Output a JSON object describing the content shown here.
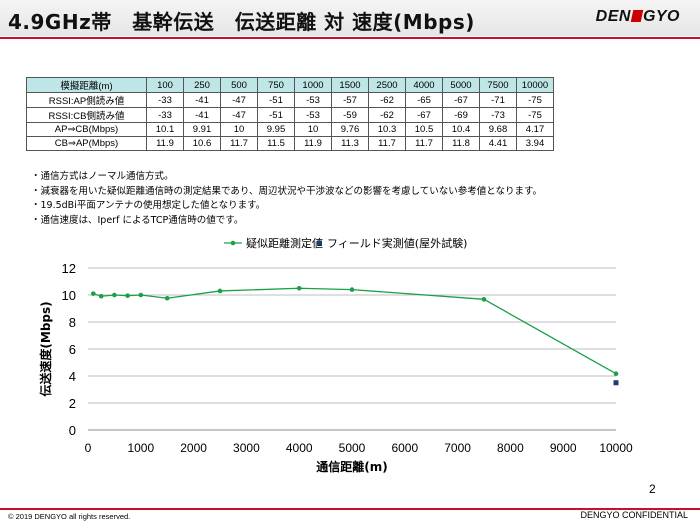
{
  "header": {
    "title": "4.9GHz帯　基幹伝送　伝送距離 対 速度(Mbps)",
    "logo_left": "DEN",
    "logo_right": "GYO"
  },
  "table": {
    "header_label": "模擬距離(m)",
    "distances": [
      "100",
      "250",
      "500",
      "750",
      "1000",
      "1500",
      "2500",
      "4000",
      "5000",
      "7500",
      "10000"
    ],
    "rows": [
      {
        "label": "RSSI:AP側読み値",
        "values": [
          "-33",
          "-41",
          "-47",
          "-51",
          "-53",
          "-57",
          "-62",
          "-65",
          "-67",
          "-71",
          "-75"
        ]
      },
      {
        "label": "RSSI:CB側読み値",
        "values": [
          "-33",
          "-41",
          "-47",
          "-51",
          "-53",
          "-59",
          "-62",
          "-67",
          "-69",
          "-73",
          "-75"
        ]
      },
      {
        "label": "AP⇒CB(Mbps)",
        "values": [
          "10.1",
          "9.91",
          "10",
          "9.95",
          "10",
          "9.76",
          "10.3",
          "10.5",
          "10.4",
          "9.68",
          "4.17"
        ]
      },
      {
        "label": "CB⇒AP(Mbps)",
        "values": [
          "11.9",
          "10.6",
          "11.7",
          "11.5",
          "11.9",
          "11.3",
          "11.7",
          "11.7",
          "11.8",
          "4.41",
          "3.94"
        ]
      }
    ]
  },
  "notes": [
    "・通信方式はノーマル通信方式。",
    "・減衰器を用いた疑似距離通信時の測定結果であり、周辺状況や干渉波などの影響を考慮していない参考値となります。",
    "・19.5dBi平面アンテナの使用想定した値となります。",
    "・通信速度は、Iperf によるTCP通信時の値です。"
  ],
  "chart_data": {
    "type": "line",
    "xlabel": "通信距離(m)",
    "ylabel": "伝送速度(Mbps)",
    "xlim": [
      0,
      10000
    ],
    "ylim": [
      0,
      12
    ],
    "x_ticks": [
      "0",
      "1000",
      "2000",
      "3000",
      "4000",
      "5000",
      "6000",
      "7000",
      "8000",
      "9000",
      "10000"
    ],
    "y_ticks": [
      "0",
      "2",
      "4",
      "6",
      "8",
      "10",
      "12"
    ],
    "legend_position": "top",
    "series": [
      {
        "name": "疑似距離測定値",
        "style": "line-marker",
        "color": "#1aa048",
        "x": [
          100,
          250,
          500,
          750,
          1000,
          1500,
          2500,
          4000,
          5000,
          7500,
          10000
        ],
        "y": [
          10.1,
          9.91,
          10,
          9.95,
          10,
          9.76,
          10.3,
          10.5,
          10.4,
          9.68,
          4.17
        ]
      },
      {
        "name": "フィールド実測値(屋外試験)",
        "style": "marker",
        "color": "#1f3a6e",
        "x": [
          10000
        ],
        "y": [
          3.5
        ]
      }
    ]
  },
  "footer": {
    "copyright": "© 2019 DENGYO  all rights reserved.",
    "confidential": "DENGYO CONFIDENTIAL",
    "page": "2"
  }
}
